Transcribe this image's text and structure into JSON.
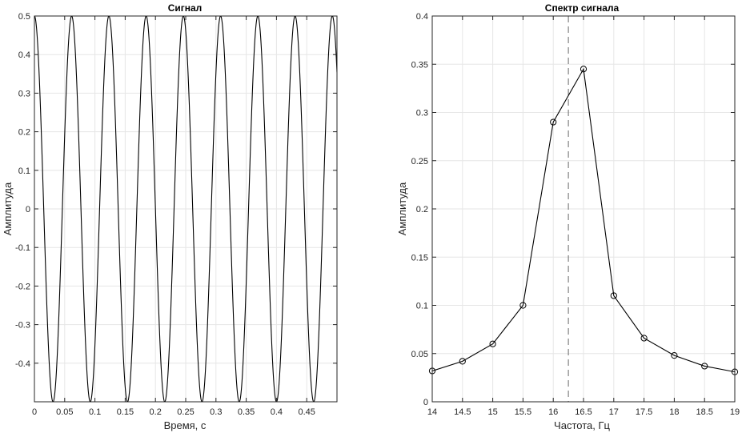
{
  "chart_data": [
    {
      "type": "line",
      "title": "Сигнал",
      "xlabel": "Время, с",
      "ylabel": "Амплитуда",
      "xlim": [
        0,
        0.5
      ],
      "ylim": [
        -0.5,
        0.5
      ],
      "grid": true,
      "xticks": [
        0,
        0.05,
        0.1,
        0.15,
        0.2,
        0.25,
        0.3,
        0.35,
        0.4,
        0.45
      ],
      "xtick_labels": [
        "0",
        "0.05",
        "0.1",
        "0.15",
        "0.2",
        "0.25",
        "0.3",
        "0.35",
        "0.4",
        "0.45"
      ],
      "yticks": [
        -0.4,
        -0.3,
        -0.2,
        -0.1,
        0,
        0.1,
        0.2,
        0.3,
        0.4,
        0.5
      ],
      "ytick_labels": [
        "-0.4",
        "-0.3",
        "-0.2",
        "-0.1",
        "0",
        "0.1",
        "0.2",
        "0.3",
        "0.4",
        "0.5"
      ],
      "series": [
        {
          "function": "0.5*cos(2*pi*f*t)",
          "frequency_hz": 16.25,
          "amplitude": 0.5,
          "t_range": [
            0,
            0.5
          ],
          "color": "#000000"
        }
      ]
    },
    {
      "type": "line",
      "title": "Спектр сигнала",
      "xlabel": "Частота, Гц",
      "ylabel": "Амплитуда",
      "xlim": [
        14,
        19
      ],
      "ylim": [
        0,
        0.4
      ],
      "grid": true,
      "xticks": [
        14,
        14.5,
        15,
        15.5,
        16,
        16.5,
        17,
        17.5,
        18,
        18.5,
        19
      ],
      "xtick_labels": [
        "14",
        "14.5",
        "15",
        "15.5",
        "16",
        "16.5",
        "17",
        "17.5",
        "18",
        "18.5",
        "19"
      ],
      "yticks": [
        0,
        0.05,
        0.1,
        0.15,
        0.2,
        0.25,
        0.3,
        0.35,
        0.4
      ],
      "ytick_labels": [
        "0",
        "0.05",
        "0.1",
        "0.15",
        "0.2",
        "0.25",
        "0.3",
        "0.35",
        "0.4"
      ],
      "series": [
        {
          "x": [
            14,
            14.5,
            15,
            15.5,
            16,
            16.5,
            17,
            17.5,
            18,
            18.5,
            19
          ],
          "y": [
            0.032,
            0.042,
            0.06,
            0.1,
            0.29,
            0.345,
            0.11,
            0.066,
            0.048,
            0.037,
            0.031
          ],
          "marker": "circle",
          "color": "#000000"
        }
      ],
      "reference_line": {
        "x": 16.25,
        "style": "dashed",
        "color": "#808080"
      }
    }
  ]
}
